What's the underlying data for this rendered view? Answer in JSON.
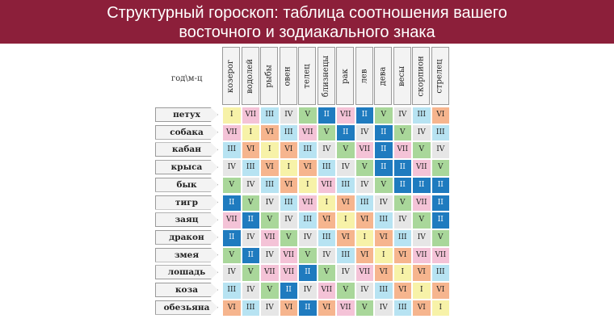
{
  "title": {
    "line1": "Структурный гороскоп: таблица соотношения вашего",
    "line2": "восточного и зодиакального знака"
  },
  "corner_label": "год\\м-ц",
  "zodiac": [
    "козерог",
    "водолей",
    "рыбы",
    "овен",
    "телец",
    "близнецы",
    "рак",
    "лев",
    "дева",
    "весы",
    "скорпион",
    "стрелец"
  ],
  "eastern": [
    "петух",
    "собака",
    "кабан",
    "крыса",
    "бык",
    "тигр",
    "заяц",
    "дракон",
    "змея",
    "лошадь",
    "коза",
    "обезьяна"
  ],
  "grid": [
    [
      "I",
      "VII",
      "III",
      "IV",
      "V",
      "II",
      "VII",
      "II",
      "V",
      "IV",
      "III",
      "VI"
    ],
    [
      "VII",
      "I",
      "VI",
      "III",
      "VII",
      "V",
      "II",
      "IV",
      "II",
      "V",
      "IV",
      "III"
    ],
    [
      "III",
      "VI",
      "I",
      "VI",
      "III",
      "IV",
      "V",
      "VII",
      "II",
      "VII",
      "V",
      "IV"
    ],
    [
      "IV",
      "III",
      "VI",
      "I",
      "VI",
      "III",
      "IV",
      "V",
      "II",
      "II",
      "VII",
      "V"
    ],
    [
      "V",
      "IV",
      "III",
      "VI",
      "I",
      "VII",
      "III",
      "IV",
      "V",
      "II",
      "II",
      "II"
    ],
    [
      "II",
      "V",
      "IV",
      "III",
      "VII",
      "I",
      "VI",
      "III",
      "IV",
      "V",
      "VII",
      "II"
    ],
    [
      "VII",
      "II",
      "V",
      "IV",
      "III",
      "VI",
      "I",
      "VI",
      "III",
      "IV",
      "V",
      "II"
    ],
    [
      "II",
      "IV",
      "VII",
      "V",
      "IV",
      "III",
      "VI",
      "I",
      "VI",
      "III",
      "IV",
      "V"
    ],
    [
      "V",
      "II",
      "IV",
      "VII",
      "V",
      "IV",
      "III",
      "VI",
      "I",
      "VI",
      "VII",
      "VII"
    ],
    [
      "IV",
      "V",
      "VII",
      "VII",
      "II",
      "V",
      "IV",
      "VII",
      "VI",
      "I",
      "VI",
      "III"
    ],
    [
      "III",
      "IV",
      "V",
      "II",
      "IV",
      "VII",
      "V",
      "IV",
      "III",
      "VI",
      "I",
      "VI"
    ],
    [
      "VI",
      "III",
      "IV",
      "VI",
      "II",
      "VI",
      "VII",
      "V",
      "IV",
      "III",
      "VI",
      "I"
    ]
  ],
  "colors": {
    "I": "#f7f2a8",
    "II": "#1f7bbf",
    "III": "#b7e3f2",
    "IV": "#e6e6e6",
    "V": "#a9d79a",
    "VI": "#f6b58e",
    "VII": "#f4c3d7",
    "banner": "#8c1f3a"
  }
}
